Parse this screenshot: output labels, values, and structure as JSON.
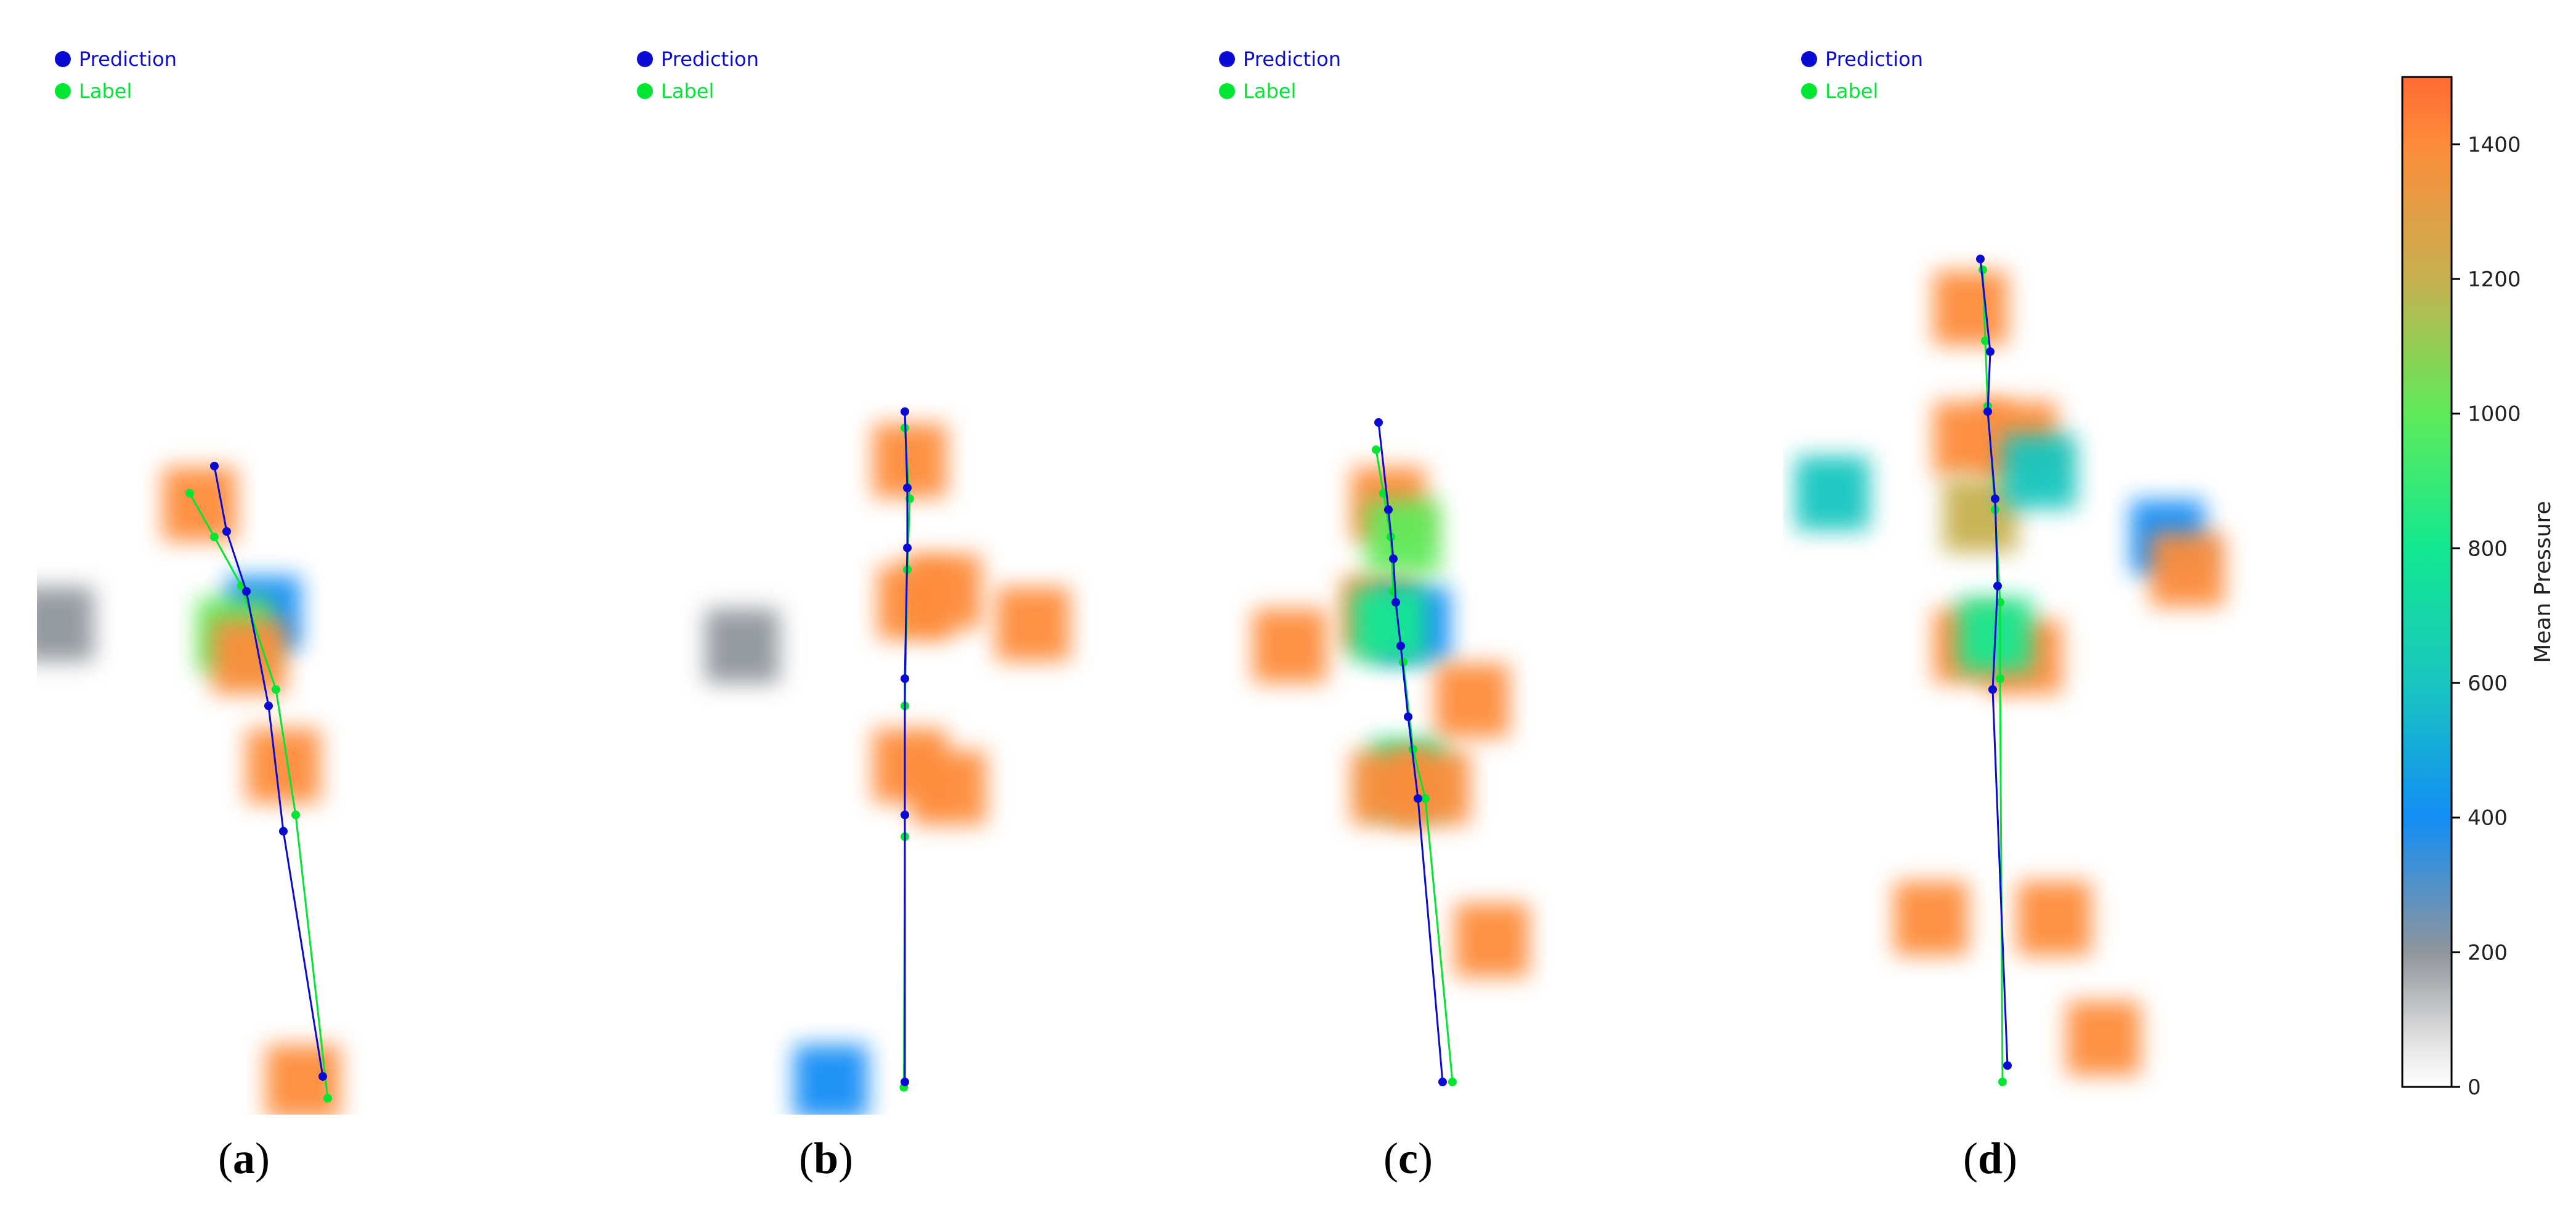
{
  "colors": {
    "prediction": "#0a0ad2",
    "label": "#00e632",
    "colormap": [
      {
        "v": 0,
        "c": "#ffffff"
      },
      {
        "v": 60,
        "c": "#e6e6e6"
      },
      {
        "v": 200,
        "c": "#8f959c"
      },
      {
        "v": 400,
        "c": "#138ef5"
      },
      {
        "v": 600,
        "c": "#19c6c0"
      },
      {
        "v": 800,
        "c": "#12e890"
      },
      {
        "v": 1000,
        "c": "#5fea5a"
      },
      {
        "v": 1200,
        "c": "#c7b04f"
      },
      {
        "v": 1400,
        "c": "#fd8c3a"
      },
      {
        "v": 1500,
        "c": "#ff6a32"
      }
    ]
  },
  "legend": {
    "prediction": "Prediction",
    "label": "Label"
  },
  "colorbar": {
    "title": "Mean Pressure",
    "min": 0,
    "max": 1500,
    "ticks": [
      "0",
      "200",
      "400",
      "600",
      "800",
      "1000",
      "1200",
      "1400"
    ]
  },
  "chart_data": [
    {
      "type": "heatmap",
      "panel": "(a)",
      "letter": "a",
      "description_units": "pressure map with predicted and labeled keypoint chains",
      "pressure_blobs": [
        {
          "x": 0.46,
          "y": 0.54,
          "v": 300
        },
        {
          "x": 0.4,
          "y": 0.56,
          "v": 900
        },
        {
          "x": 0.43,
          "y": 0.58,
          "v": 1250
        },
        {
          "x": 0.5,
          "y": 0.68,
          "v": 1400
        },
        {
          "x": 0.54,
          "y": 0.97,
          "v": 1400
        },
        {
          "x": 0.33,
          "y": 0.44,
          "v": 1350
        },
        {
          "x": 0.04,
          "y": 0.55,
          "v": 120
        }
      ],
      "prediction": [
        [
          0.36,
          0.405
        ],
        [
          0.385,
          0.465
        ],
        [
          0.425,
          0.52
        ],
        [
          0.47,
          0.625
        ],
        [
          0.5,
          0.74
        ],
        [
          0.58,
          0.965
        ]
      ],
      "label": [
        [
          0.31,
          0.43
        ],
        [
          0.36,
          0.47
        ],
        [
          0.415,
          0.515
        ],
        [
          0.485,
          0.61
        ],
        [
          0.525,
          0.725
        ],
        [
          0.59,
          0.985
        ]
      ]
    },
    {
      "type": "heatmap",
      "panel": "(b)",
      "letter": "b",
      "pressure_blobs": [
        {
          "x": 0.59,
          "y": 0.4,
          "v": 1300
        },
        {
          "x": 0.6,
          "y": 0.53,
          "v": 1380
        },
        {
          "x": 0.66,
          "y": 0.52,
          "v": 1380
        },
        {
          "x": 0.59,
          "y": 0.68,
          "v": 1400
        },
        {
          "x": 0.67,
          "y": 0.7,
          "v": 1380
        },
        {
          "x": 0.84,
          "y": 0.55,
          "v": 1300
        },
        {
          "x": 0.43,
          "y": 0.97,
          "v": 400
        },
        {
          "x": 0.25,
          "y": 0.57,
          "v": 150
        }
      ],
      "prediction": [
        [
          0.58,
          0.355
        ],
        [
          0.585,
          0.425
        ],
        [
          0.585,
          0.48
        ],
        [
          0.58,
          0.6
        ],
        [
          0.58,
          0.725
        ],
        [
          0.58,
          0.97
        ]
      ],
      "label": [
        [
          0.58,
          0.37
        ],
        [
          0.59,
          0.435
        ],
        [
          0.585,
          0.5
        ],
        [
          0.58,
          0.625
        ],
        [
          0.58,
          0.745
        ],
        [
          0.578,
          0.975
        ]
      ]
    },
    {
      "type": "heatmap",
      "panel": "(c)",
      "letter": "c",
      "pressure_blobs": [
        {
          "x": 0.38,
          "y": 0.44,
          "v": 1300
        },
        {
          "x": 0.36,
          "y": 0.54,
          "v": 1400
        },
        {
          "x": 0.43,
          "y": 0.55,
          "v": 350
        },
        {
          "x": 0.38,
          "y": 0.55,
          "v": 700
        },
        {
          "x": 0.42,
          "y": 0.69,
          "v": 800
        },
        {
          "x": 0.38,
          "y": 0.7,
          "v": 1350
        },
        {
          "x": 0.47,
          "y": 0.7,
          "v": 1350
        },
        {
          "x": 0.18,
          "y": 0.57,
          "v": 1400
        },
        {
          "x": 0.55,
          "y": 0.62,
          "v": 1350
        },
        {
          "x": 0.59,
          "y": 0.84,
          "v": 1400
        },
        {
          "x": 0.41,
          "y": 0.47,
          "v": 900
        }
      ],
      "prediction": [
        [
          0.36,
          0.365
        ],
        [
          0.38,
          0.445
        ],
        [
          0.39,
          0.49
        ],
        [
          0.395,
          0.53
        ],
        [
          0.405,
          0.57
        ],
        [
          0.42,
          0.635
        ],
        [
          0.44,
          0.71
        ],
        [
          0.49,
          0.97
        ]
      ],
      "label": [
        [
          0.355,
          0.39
        ],
        [
          0.37,
          0.43
        ],
        [
          0.385,
          0.47
        ],
        [
          0.39,
          0.52
        ],
        [
          0.41,
          0.585
        ],
        [
          0.43,
          0.665
        ],
        [
          0.455,
          0.71
        ],
        [
          0.51,
          0.97
        ]
      ]
    },
    {
      "type": "heatmap",
      "panel": "(d)",
      "letter": "d",
      "pressure_blobs": [
        {
          "x": 0.38,
          "y": 0.26,
          "v": 1350
        },
        {
          "x": 0.38,
          "y": 0.38,
          "v": 1350
        },
        {
          "x": 0.48,
          "y": 0.38,
          "v": 1380
        },
        {
          "x": 0.4,
          "y": 0.45,
          "v": 1200
        },
        {
          "x": 0.38,
          "y": 0.57,
          "v": 1380
        },
        {
          "x": 0.49,
          "y": 0.58,
          "v": 1380
        },
        {
          "x": 0.43,
          "y": 0.56,
          "v": 750
        },
        {
          "x": 0.52,
          "y": 0.41,
          "v": 600
        },
        {
          "x": 0.78,
          "y": 0.47,
          "v": 380
        },
        {
          "x": 0.82,
          "y": 0.5,
          "v": 1300
        },
        {
          "x": 0.1,
          "y": 0.43,
          "v": 600
        },
        {
          "x": 0.3,
          "y": 0.82,
          "v": 1300
        },
        {
          "x": 0.55,
          "y": 0.82,
          "v": 1350
        },
        {
          "x": 0.65,
          "y": 0.93,
          "v": 1300
        }
      ],
      "prediction": [
        [
          0.4,
          0.215
        ],
        [
          0.42,
          0.3
        ],
        [
          0.415,
          0.355
        ],
        [
          0.43,
          0.435
        ],
        [
          0.435,
          0.515
        ],
        [
          0.425,
          0.61
        ],
        [
          0.455,
          0.955
        ]
      ],
      "label": [
        [
          0.405,
          0.225
        ],
        [
          0.41,
          0.29
        ],
        [
          0.415,
          0.35
        ],
        [
          0.43,
          0.445
        ],
        [
          0.44,
          0.53
        ],
        [
          0.44,
          0.6
        ],
        [
          0.445,
          0.97
        ]
      ]
    }
  ]
}
